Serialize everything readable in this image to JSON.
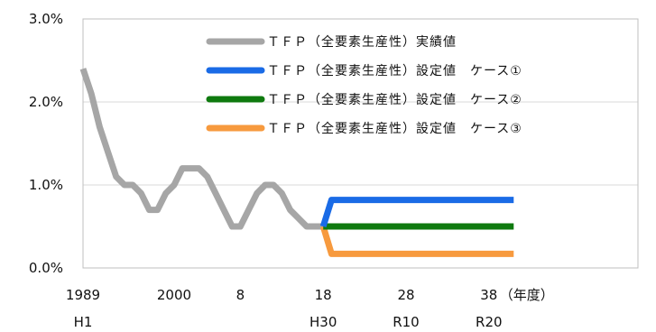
{
  "chart_data": {
    "type": "line",
    "xlabel": "（年度）",
    "ylabel": "",
    "ylim": [
      0,
      3.0
    ],
    "x_range": [
      1989,
      2056
    ],
    "y_tick_labels": [
      "0.0%",
      "1.0%",
      "2.0%",
      "3.0%"
    ],
    "y_tick_values": [
      0,
      1,
      2,
      3
    ],
    "x_tick_labels": [
      "1989",
      "2000",
      "8",
      "18",
      "28",
      "38"
    ],
    "x_tick_values": [
      1989,
      2000,
      2008,
      2018,
      2028,
      2038
    ],
    "x_tick_labels_era": [
      "H1",
      "H30",
      "R10",
      "R20"
    ],
    "x_tick_values_era": [
      1989,
      2018,
      2028,
      2038
    ],
    "grid": "horizontal",
    "legend_position": "top-center",
    "series": [
      {
        "name": "ＴＦＰ（全要素生産性）実績値",
        "color": "#A6A6A6",
        "x": [
          1989,
          1990,
          1991,
          1992,
          1993,
          1994,
          1995,
          1996,
          1997,
          1998,
          1999,
          2000,
          2001,
          2002,
          2003,
          2004,
          2005,
          2006,
          2007,
          2008,
          2009,
          2010,
          2011,
          2012,
          2013,
          2014,
          2015,
          2016,
          2017,
          2018
        ],
        "values": [
          2.4,
          2.1,
          1.7,
          1.4,
          1.1,
          1.0,
          1.0,
          0.9,
          0.7,
          0.7,
          0.9,
          1.0,
          1.2,
          1.2,
          1.2,
          1.1,
          0.9,
          0.7,
          0.5,
          0.5,
          0.7,
          0.9,
          1.0,
          1.0,
          0.9,
          0.7,
          0.6,
          0.5,
          0.5,
          0.5
        ]
      },
      {
        "name": "ＴＦＰ（全要素生産性）設定値　ケース①",
        "color": "#1A6BE6",
        "x": [
          2018,
          2019,
          2041
        ],
        "values": [
          0.5,
          0.82,
          0.82
        ]
      },
      {
        "name": "ＴＦＰ（全要素生産性）設定値　ケース②",
        "color": "#0F7A0F",
        "x": [
          2018,
          2019,
          2041
        ],
        "values": [
          0.5,
          0.5,
          0.5
        ]
      },
      {
        "name": "ＴＦＰ（全要素生産性）設定値　ケース③",
        "color": "#F79A3E",
        "x": [
          2018,
          2019,
          2041
        ],
        "values": [
          0.5,
          0.17,
          0.17
        ]
      }
    ]
  }
}
